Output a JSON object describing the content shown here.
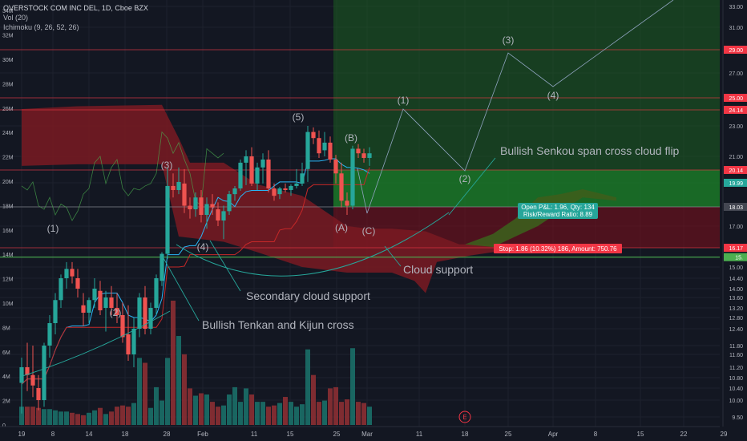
{
  "legend": {
    "title": "OVERSTOCK COM INC DEL, 1D, Cboe BZX",
    "vol": "Vol (20)",
    "ichimoku": "Ichimoku (9, 26, 52, 26)"
  },
  "chart_data": {
    "type": "candlestick",
    "candles": [
      {
        "o": 10.6,
        "h": 11.5,
        "l": 9.6,
        "c": 11.2
      },
      {
        "o": 11.2,
        "h": 11.9,
        "l": 10.3,
        "c": 10.9
      },
      {
        "o": 10.9,
        "h": 11.8,
        "l": 10.1,
        "c": 10.5
      },
      {
        "o": 10.4,
        "h": 10.9,
        "l": 9.7,
        "c": 10.0
      },
      {
        "o": 10.0,
        "h": 11.9,
        "l": 9.8,
        "c": 11.8
      },
      {
        "o": 11.8,
        "h": 12.9,
        "l": 11.5,
        "c": 12.6
      },
      {
        "o": 12.6,
        "h": 13.8,
        "l": 12.2,
        "c": 13.5
      },
      {
        "o": 13.5,
        "h": 14.6,
        "l": 13.2,
        "c": 14.4
      },
      {
        "o": 14.4,
        "h": 15.3,
        "l": 14.0,
        "c": 14.9
      },
      {
        "o": 14.9,
        "h": 15.3,
        "l": 14.2,
        "c": 14.5
      },
      {
        "o": 14.4,
        "h": 14.9,
        "l": 13.6,
        "c": 14.0
      },
      {
        "o": 13.3,
        "h": 13.8,
        "l": 12.5,
        "c": 13.0
      },
      {
        "o": 13.0,
        "h": 13.6,
        "l": 12.6,
        "c": 13.5
      },
      {
        "o": 13.5,
        "h": 14.4,
        "l": 13.2,
        "c": 14.0
      },
      {
        "o": 13.9,
        "h": 14.3,
        "l": 12.9,
        "c": 13.1
      },
      {
        "o": 13.2,
        "h": 13.9,
        "l": 12.3,
        "c": 13.6
      },
      {
        "o": 13.6,
        "h": 14.1,
        "l": 12.9,
        "c": 13.2
      },
      {
        "o": 13.2,
        "h": 13.8,
        "l": 12.6,
        "c": 12.9
      },
      {
        "o": 12.9,
        "h": 13.4,
        "l": 11.9,
        "c": 12.1
      },
      {
        "o": 12.2,
        "h": 13.3,
        "l": 11.4,
        "c": 11.6
      },
      {
        "o": 11.6,
        "h": 12.8,
        "l": 11.2,
        "c": 12.4
      },
      {
        "o": 12.4,
        "h": 13.8,
        "l": 12.1,
        "c": 13.6
      },
      {
        "o": 13.6,
        "h": 14.1,
        "l": 12.2,
        "c": 12.4
      },
      {
        "o": 12.4,
        "h": 13.4,
        "l": 12.2,
        "c": 13.2
      },
      {
        "o": 13.2,
        "h": 14.6,
        "l": 12.9,
        "c": 14.4
      },
      {
        "o": 14.3,
        "h": 15.9,
        "l": 14.1,
        "c": 15.8
      },
      {
        "o": 15.8,
        "h": 20.3,
        "l": 15.5,
        "c": 19.6
      },
      {
        "o": 19.6,
        "h": 20.1,
        "l": 18.6,
        "c": 19.1
      },
      {
        "o": 19.1,
        "h": 20.3,
        "l": 18.8,
        "c": 20.0
      },
      {
        "o": 19.9,
        "h": 20.2,
        "l": 17.7,
        "c": 18.1
      },
      {
        "o": 18.1,
        "h": 18.6,
        "l": 17.4,
        "c": 17.9
      },
      {
        "o": 17.9,
        "h": 18.9,
        "l": 17.5,
        "c": 18.6
      },
      {
        "o": 18.6,
        "h": 19.1,
        "l": 17.2,
        "c": 17.6
      },
      {
        "o": 17.6,
        "h": 18.6,
        "l": 16.9,
        "c": 18.2
      },
      {
        "o": 18.2,
        "h": 18.8,
        "l": 17.6,
        "c": 18.0
      },
      {
        "o": 17.9,
        "h": 18.3,
        "l": 17.0,
        "c": 17.3
      },
      {
        "o": 17.3,
        "h": 18.1,
        "l": 16.5,
        "c": 17.8
      },
      {
        "o": 17.8,
        "h": 19.0,
        "l": 17.6,
        "c": 18.8
      },
      {
        "o": 18.8,
        "h": 19.6,
        "l": 18.4,
        "c": 19.3
      },
      {
        "o": 19.3,
        "h": 20.8,
        "l": 19.0,
        "c": 20.6
      },
      {
        "o": 20.6,
        "h": 21.4,
        "l": 19.7,
        "c": 21.0
      },
      {
        "o": 21.0,
        "h": 21.6,
        "l": 19.6,
        "c": 19.9
      },
      {
        "o": 19.9,
        "h": 20.6,
        "l": 19.1,
        "c": 20.3
      },
      {
        "o": 20.3,
        "h": 21.2,
        "l": 19.9,
        "c": 20.8
      },
      {
        "o": 20.8,
        "h": 21.4,
        "l": 18.9,
        "c": 19.3
      },
      {
        "o": 19.3,
        "h": 19.9,
        "l": 18.4,
        "c": 18.7
      },
      {
        "o": 18.8,
        "h": 19.5,
        "l": 18.5,
        "c": 19.3
      },
      {
        "o": 19.3,
        "h": 19.9,
        "l": 18.9,
        "c": 19.1
      },
      {
        "o": 19.1,
        "h": 19.8,
        "l": 18.7,
        "c": 19.6
      },
      {
        "o": 19.6,
        "h": 20.2,
        "l": 19.3,
        "c": 19.9
      },
      {
        "o": 19.9,
        "h": 20.6,
        "l": 19.6,
        "c": 20.1
      },
      {
        "o": 20.2,
        "h": 23.0,
        "l": 20.0,
        "c": 22.6
      },
      {
        "o": 22.6,
        "h": 22.9,
        "l": 21.8,
        "c": 22.2
      },
      {
        "o": 22.2,
        "h": 22.7,
        "l": 20.9,
        "c": 21.2
      },
      {
        "o": 21.4,
        "h": 22.6,
        "l": 21.0,
        "c": 21.9
      },
      {
        "o": 21.9,
        "h": 22.3,
        "l": 20.6,
        "c": 20.8
      },
      {
        "o": 20.8,
        "h": 21.1,
        "l": 19.9,
        "c": 20.1
      },
      {
        "o": 20.1,
        "h": 20.6,
        "l": 18.0,
        "c": 18.4
      },
      {
        "o": 18.4,
        "h": 18.9,
        "l": 17.6,
        "c": 18.1
      },
      {
        "o": 18.1,
        "h": 21.7,
        "l": 17.9,
        "c": 21.5
      },
      {
        "o": 21.5,
        "h": 21.8,
        "l": 20.9,
        "c": 21.2
      },
      {
        "o": 21.2,
        "h": 21.5,
        "l": 20.6,
        "c": 20.9
      },
      {
        "o": 20.9,
        "h": 21.6,
        "l": 20.4,
        "c": 21.2
      }
    ],
    "volume": [
      1.5,
      1.5,
      1.5,
      1.4,
      1.3,
      1.3,
      1.2,
      1.1,
      1.1,
      1.0,
      0.9,
      0.8,
      1.0,
      1.2,
      1.4,
      0.9,
      1.1,
      1.5,
      1.6,
      1.5,
      1.8,
      5.5,
      5.1,
      1.4,
      3.1,
      2.0,
      5.5,
      10.2,
      7.3,
      5.8,
      3.0,
      2.4,
      2.6,
      2.5,
      1.9,
      1.5,
      1.6,
      2.5,
      3.1,
      1.9,
      3.0,
      2.5,
      1.9,
      1.9,
      1.5,
      1.6,
      1.8,
      2.3,
      1.9,
      1.5,
      1.7,
      6.2,
      4.1,
      1.9,
      2.0,
      3.0,
      3.1,
      1.9,
      2.1,
      6.3,
      1.9,
      1.8,
      1.5
    ],
    "price_axis": [
      9.5,
      10.0,
      10.4,
      10.8,
      11.2,
      11.6,
      11.8,
      12.4,
      12.8,
      13.2,
      13.6,
      14.0,
      14.4,
      15.0,
      16.17,
      17.0,
      18.03,
      19.99,
      20.14,
      21.0,
      23.0,
      24.14,
      25.0,
      27.0,
      29.0,
      31.0,
      33.0
    ],
    "price_axis_labels": [
      "9.50",
      "10.00",
      "10.40",
      "10.80",
      "11.20",
      "11.60",
      "11.80",
      "12.40",
      "12.80",
      "13.20",
      "13.60",
      "14.00",
      "14.40",
      "15.00",
      "16.17",
      "17.00",
      "18.03",
      "19.99",
      "20.14",
      "21.00",
      "23.00",
      "24.14",
      "25.00",
      "27.00",
      "29.00",
      "31.00",
      "33.00"
    ],
    "price_axis_tags": [
      {
        "text": "29.00",
        "color": "#f23645"
      },
      {
        "text": "25.00",
        "color": "#f23645"
      },
      {
        "text": "24.14",
        "color": "#f23645"
      },
      {
        "text": "20.14",
        "color": "#f23645"
      },
      {
        "text": "19.99",
        "color": "#26a69a"
      },
      {
        "text": "18.03",
        "color": "#434651"
      },
      {
        "text": "16.17",
        "color": "#f23645"
      }
    ],
    "green_tag_label": "15.",
    "volume_axis": [
      "0",
      "2M",
      "4M",
      "6M",
      "8M",
      "10M",
      "12M",
      "14M",
      "16M",
      "18M",
      "20M",
      "22M",
      "24M",
      "26M",
      "28M",
      "30M",
      "32M",
      "34M"
    ],
    "time_axis": [
      "19",
      "8",
      "14",
      "18",
      "28",
      "Feb",
      "11",
      "15",
      "25",
      "Mar",
      "11",
      "18",
      "25",
      "Apr",
      "8",
      "15",
      "22",
      "29"
    ],
    "annotations": {
      "wave_labels": [
        "(1)",
        "(2)",
        "(3)",
        "(4)",
        "(5)",
        "(A)",
        "(B)",
        "(C)",
        "(1)",
        "(2)",
        "(3)",
        "(4)"
      ],
      "bullish_cross": "Bullish Tenkan and Kijun cross",
      "secondary_support": "Secondary cloud support",
      "cloud_support": "Cloud support",
      "senkou_flip": "Bullish Senkou span cross cloud flip"
    },
    "position": {
      "pnl": "Open P&L: 1.96, Qty: 134",
      "ratio": "Risk/Reward Ratio: 8.89",
      "stop": "Stop: 1.86 (10.32%) 186, Amount: 750.76"
    },
    "earnings_marker": "E",
    "colors": {
      "up": "#26a69a",
      "down": "#ef5350",
      "cloud_bear": "#7a1a22",
      "cloud_bull": "#3d5e1c",
      "tenkan": "#2962ff",
      "kijun": "#b71c1c",
      "target": "#1b5e20",
      "stop": "#880e1c"
    }
  }
}
